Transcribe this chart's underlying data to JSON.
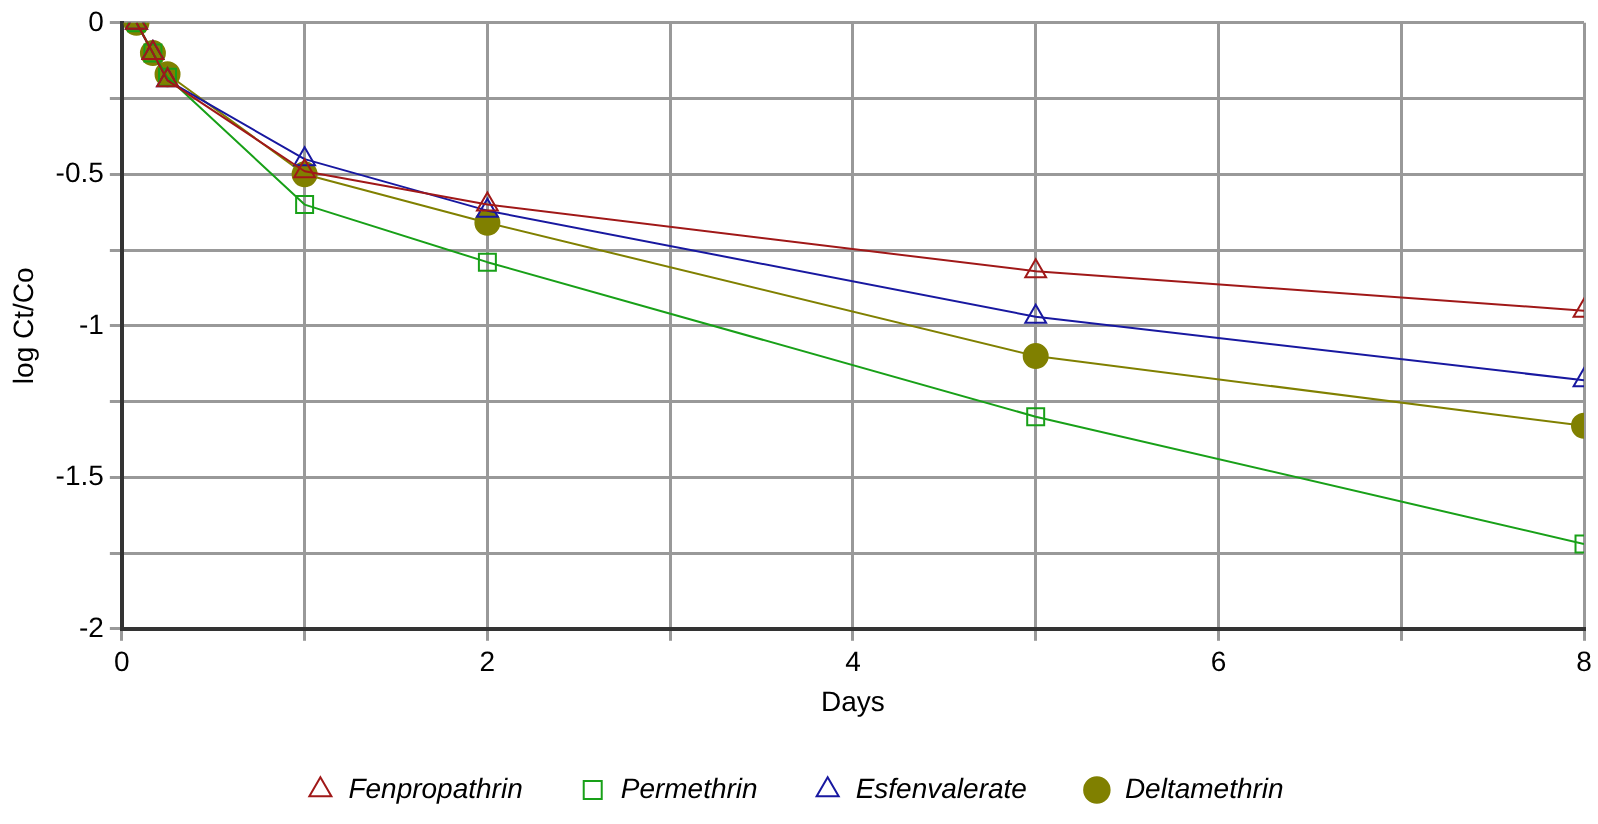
{
  "chart_data": {
    "type": "line",
    "xlabel": "Days",
    "ylabel": "log Ct/Co",
    "x": [
      0.08,
      0.17,
      0.25,
      1,
      2,
      5,
      8
    ],
    "xlim": [
      0,
      8
    ],
    "xticks": [
      0,
      {
        "value": 1,
        "label": null
      },
      2,
      {
        "value": 3,
        "label": null
      },
      4,
      {
        "value": 5,
        "label": null
      },
      6,
      {
        "value": 7,
        "label": null
      },
      8
    ],
    "ylim": [
      -2,
      0
    ],
    "yticks": [
      -2,
      {
        "value": -1.75,
        "label": null
      },
      -1.5,
      {
        "value": -1.25,
        "label": null
      },
      -1,
      {
        "value": -0.75,
        "label": null
      },
      -0.5,
      {
        "value": -0.25,
        "label": null
      },
      0
    ],
    "grid": true,
    "legend": "bottom",
    "series": [
      {
        "name": "Fenpropathrin",
        "color": "#a01818",
        "marker": "triangle",
        "values": [
          0,
          -0.1,
          -0.19,
          -0.49,
          -0.6,
          -0.82,
          -0.95
        ]
      },
      {
        "name": "Permethrin",
        "color": "#18a018",
        "marker": "square",
        "values": [
          0,
          -0.1,
          -0.18,
          -0.6,
          -0.79,
          -1.3,
          -1.72
        ]
      },
      {
        "name": "Esfenvalerate",
        "color": "#1818a0",
        "marker": "triangle",
        "values": [
          0,
          -0.1,
          -0.19,
          -0.45,
          -0.62,
          -0.97,
          -1.18
        ]
      },
      {
        "name": "Deltamethrin",
        "color": "#808000",
        "marker": "circle",
        "values": [
          0,
          -0.1,
          -0.17,
          -0.5,
          -0.66,
          -1.1,
          -1.33
        ]
      }
    ]
  }
}
